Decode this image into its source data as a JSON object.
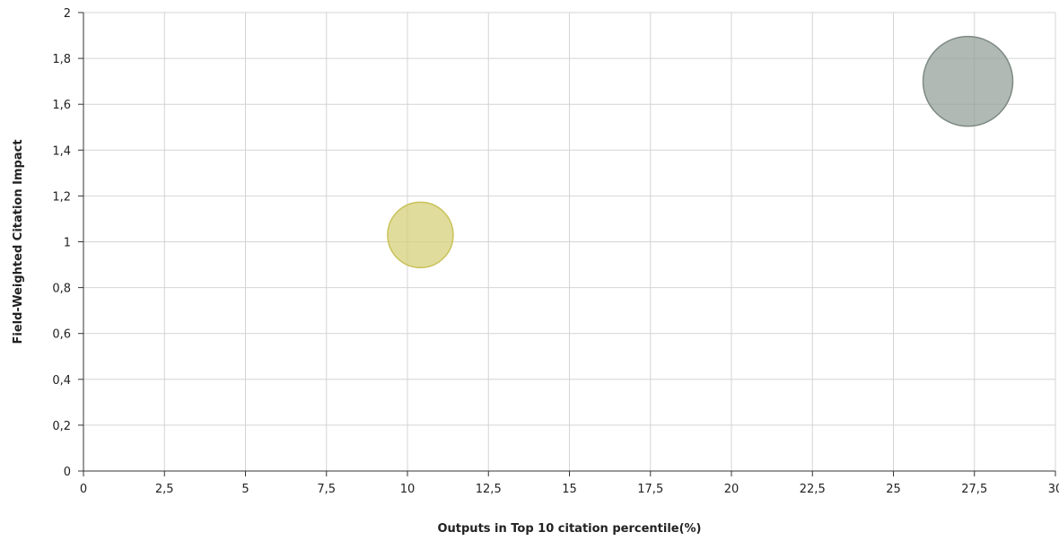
{
  "chart_data": {
    "type": "scatter",
    "xlabel": "Outputs in Top 10 citation percentile(%)",
    "ylabel": "Field-Weighted Citation Impact",
    "xlim": [
      0,
      30
    ],
    "ylim": [
      0,
      2
    ],
    "x_ticks": [
      0,
      2.5,
      5,
      7.5,
      10,
      12.5,
      15,
      17.5,
      20,
      22.5,
      25,
      27.5,
      30
    ],
    "x_tick_labels": [
      "0",
      "2,5",
      "5",
      "7,5",
      "10",
      "12,5",
      "15",
      "17,5",
      "20",
      "22,5",
      "25",
      "27,5",
      "30"
    ],
    "y_ticks": [
      0,
      0.2,
      0.4,
      0.6,
      0.8,
      1,
      1.2,
      1.4,
      1.6,
      1.8,
      2
    ],
    "y_tick_labels": [
      "0",
      "0,2",
      "0,4",
      "0,6",
      "0,8",
      "1",
      "1,2",
      "1,4",
      "1,6",
      "1,8",
      "2"
    ],
    "grid": true,
    "legend": "none",
    "points": [
      {
        "x": 10.4,
        "y": 1.03,
        "size": 0.73,
        "color": "#d6d07a",
        "stroke": "#c9c25a"
      },
      {
        "x": 27.3,
        "y": 1.7,
        "size": 1.0,
        "color": "#95a19b",
        "stroke": "#7e8a84"
      }
    ]
  }
}
